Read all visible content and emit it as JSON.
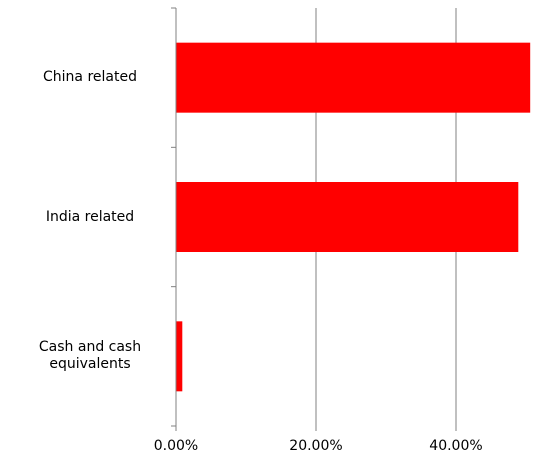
{
  "chart_data": {
    "type": "bar",
    "orientation": "horizontal",
    "categories": [
      "China related",
      "India related",
      "Cash and cash equivalents"
    ],
    "category_lines": [
      [
        "China related"
      ],
      [
        "India related"
      ],
      [
        "Cash and cash",
        "equivalents"
      ]
    ],
    "values": [
      50.6,
      48.9,
      0.9
    ],
    "xlim": [
      0,
      50
    ],
    "x_ticks": [
      0,
      20,
      40
    ],
    "x_tick_labels": [
      "0.00%",
      "20.00%",
      "40.00%"
    ],
    "grid": "vertical",
    "legend": "none",
    "title": "",
    "xlabel": "",
    "ylabel": ""
  },
  "colors": {
    "bar": "#ff0000",
    "grid": "#808080",
    "axis": "#808080"
  }
}
